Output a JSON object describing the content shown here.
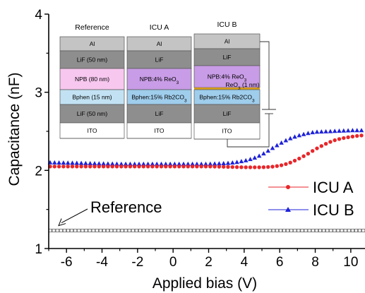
{
  "chart_data": {
    "type": "scatter",
    "xlabel": "Applied bias (V)",
    "ylabel": "Capacitance (nF)",
    "xlim": [
      -7,
      10.8
    ],
    "ylim": [
      1,
      4
    ],
    "xticks": [
      "-6",
      "-4",
      "-2",
      "0",
      "2",
      "4",
      "6",
      "8",
      "10"
    ],
    "yticks": [
      "1",
      "2",
      "3",
      "4"
    ],
    "grid": false,
    "legend": "right",
    "series": [
      {
        "name": "ICU A",
        "color": "#e8262a",
        "marker": "circle",
        "points": [
          [
            -7,
            2.05
          ],
          [
            -6,
            2.05
          ],
          [
            -5,
            2.05
          ],
          [
            -4,
            2.05
          ],
          [
            -3,
            2.05
          ],
          [
            -2,
            2.05
          ],
          [
            -1,
            2.05
          ],
          [
            0,
            2.05
          ],
          [
            1,
            2.05
          ],
          [
            2,
            2.05
          ],
          [
            3,
            2.045
          ],
          [
            4,
            2.04
          ],
          [
            5,
            2.04
          ],
          [
            5.5,
            2.045
          ],
          [
            6,
            2.06
          ],
          [
            6.5,
            2.09
          ],
          [
            7,
            2.14
          ],
          [
            7.5,
            2.2
          ],
          [
            8,
            2.27
          ],
          [
            8.5,
            2.33
          ],
          [
            9,
            2.38
          ],
          [
            9.5,
            2.41
          ],
          [
            10,
            2.43
          ],
          [
            10.5,
            2.445
          ],
          [
            10.8,
            2.45
          ]
        ]
      },
      {
        "name": "ICU B",
        "color": "#1e22d8",
        "marker": "triangle",
        "points": [
          [
            -7,
            2.1
          ],
          [
            -6,
            2.095
          ],
          [
            -5,
            2.09
          ],
          [
            -4,
            2.085
          ],
          [
            -3,
            2.08
          ],
          [
            -2,
            2.08
          ],
          [
            -1,
            2.08
          ],
          [
            0,
            2.08
          ],
          [
            1,
            2.08
          ],
          [
            2,
            2.08
          ],
          [
            3,
            2.09
          ],
          [
            3.5,
            2.1
          ],
          [
            4,
            2.12
          ],
          [
            4.5,
            2.15
          ],
          [
            5,
            2.2
          ],
          [
            5.5,
            2.27
          ],
          [
            6,
            2.34
          ],
          [
            6.5,
            2.4
          ],
          [
            7,
            2.44
          ],
          [
            7.5,
            2.47
          ],
          [
            8,
            2.49
          ],
          [
            9,
            2.5
          ],
          [
            10,
            2.51
          ],
          [
            10.8,
            2.51
          ]
        ]
      },
      {
        "name": "Reference",
        "color": "#666666",
        "marker": "open-square",
        "points": [
          [
            -7,
            1.23
          ],
          [
            10.8,
            1.23
          ]
        ]
      }
    ],
    "annotations": [
      {
        "text": "Reference",
        "points_to": [
          -6.6,
          1.23
        ]
      }
    ],
    "inset": {
      "stacks": [
        {
          "title": "Reference",
          "layers": [
            "Al",
            "LiF (50 nm)",
            "NPB (80 nm)",
            "Bphen (15 nm)",
            "LiF (50 nm)",
            "ITO"
          ]
        },
        {
          "title": "ICU A",
          "layers": [
            "Al",
            "LiF",
            "NPB:4% ReO3",
            "Bphen:15% Rb2CO3",
            "LiF",
            "ITO"
          ]
        },
        {
          "title": "ICU B",
          "layers": [
            "Al",
            "LiF",
            "NPB:4% ReO3",
            "ReO3 (1 nm)",
            "Bphen:15% Rb2CO3",
            "LiF",
            "ITO"
          ]
        }
      ],
      "colors": {
        "al": "#c4c4c4",
        "lif": "#8e8e8e",
        "npb": "#f7c7ef",
        "npb_doped": "#c89ce6",
        "bphen": "#c2e2f3",
        "bphen_doped": "#9fcdec",
        "reo3": "#d69d1c",
        "ito": "#ffffff"
      }
    }
  }
}
